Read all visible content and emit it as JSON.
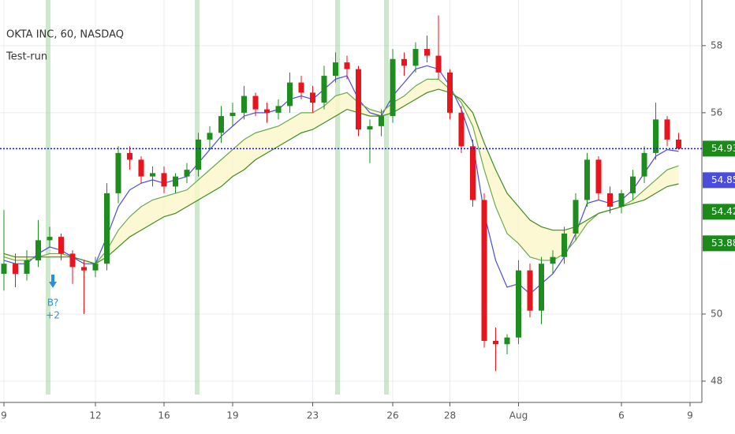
{
  "chart_data": {
    "type": "candlestick",
    "title": "OKTA INC, 60, NASDAQ",
    "subtitle": "Test-run",
    "categories": [
      "9",
      null,
      null,
      null,
      null,
      null,
      null,
      null,
      "12",
      null,
      null,
      null,
      null,
      null,
      "16",
      null,
      null,
      null,
      null,
      null,
      "19",
      null,
      null,
      null,
      null,
      null,
      null,
      "23",
      null,
      null,
      null,
      null,
      null,
      null,
      "26",
      null,
      null,
      null,
      null,
      "28",
      null,
      null,
      null,
      null,
      null,
      "Aug",
      null,
      null,
      null,
      null,
      null,
      null,
      null,
      null,
      "6",
      null,
      null,
      null,
      null,
      null,
      "9"
    ],
    "open": [
      51.2,
      51.5,
      51.2,
      51.6,
      52.2,
      52.3,
      51.8,
      51.4,
      51.3,
      51.5,
      53.6,
      54.8,
      54.6,
      54.1,
      54.2,
      53.8,
      54.1,
      54.3,
      55.2,
      55.4,
      55.9,
      56.0,
      56.5,
      56.1,
      56.0,
      56.2,
      56.9,
      56.6,
      56.3,
      57.1,
      57.5,
      57.3,
      55.5,
      55.6,
      55.9,
      57.6,
      57.4,
      57.9,
      57.7,
      57.2,
      56.0,
      55.0,
      53.4,
      49.2,
      49.1,
      49.3,
      51.3,
      50.1,
      51.5,
      51.7,
      52.4,
      53.4,
      54.6,
      53.6,
      53.2,
      53.6,
      54.1,
      54.8,
      55.8,
      55.2,
      null
    ],
    "high": [
      53.1,
      51.8,
      51.9,
      52.8,
      52.6,
      52.4,
      51.9,
      51.6,
      51.7,
      53.9,
      55.0,
      55.0,
      54.7,
      54.4,
      54.4,
      54.2,
      54.5,
      55.4,
      55.6,
      56.2,
      56.3,
      56.8,
      56.6,
      56.3,
      56.4,
      57.2,
      57.1,
      56.8,
      57.4,
      57.8,
      57.7,
      57.4,
      55.8,
      56.1,
      57.9,
      57.8,
      58.1,
      58.3,
      58.9,
      57.3,
      56.2,
      55.2,
      53.6,
      49.6,
      49.4,
      51.6,
      51.5,
      51.7,
      51.9,
      52.6,
      53.6,
      54.8,
      54.7,
      53.8,
      53.7,
      54.3,
      55.0,
      56.3,
      55.9,
      55.4,
      null
    ],
    "low": [
      50.7,
      50.8,
      51.0,
      51.4,
      52.0,
      51.6,
      50.9,
      50.0,
      51.1,
      51.3,
      53.3,
      54.3,
      53.9,
      53.8,
      53.6,
      53.6,
      53.9,
      54.1,
      54.9,
      55.1,
      55.6,
      55.8,
      55.9,
      55.7,
      55.8,
      56.0,
      56.4,
      56.0,
      56.1,
      56.9,
      57.0,
      55.3,
      54.5,
      55.3,
      55.7,
      57.1,
      57.2,
      57.5,
      57.0,
      55.8,
      54.8,
      53.2,
      49.0,
      48.3,
      48.8,
      49.1,
      49.9,
      49.7,
      51.2,
      51.5,
      52.2,
      53.2,
      53.4,
      53.0,
      53.0,
      53.4,
      53.9,
      54.6,
      55.0,
      54.9,
      null
    ],
    "close": [
      51.5,
      51.2,
      51.6,
      52.2,
      52.3,
      51.8,
      51.4,
      51.3,
      51.5,
      53.6,
      54.8,
      54.6,
      54.1,
      54.2,
      53.8,
      54.1,
      54.3,
      55.2,
      55.4,
      55.9,
      56.0,
      56.5,
      56.1,
      56.0,
      56.2,
      56.9,
      56.6,
      56.3,
      57.1,
      57.5,
      57.3,
      55.5,
      55.6,
      55.9,
      57.6,
      57.4,
      57.9,
      57.7,
      57.2,
      56.0,
      55.0,
      53.4,
      49.2,
      49.1,
      49.3,
      51.3,
      50.1,
      51.5,
      51.7,
      52.4,
      53.4,
      54.6,
      53.6,
      53.2,
      53.6,
      54.1,
      54.8,
      55.8,
      55.2,
      54.93,
      null
    ],
    "up_color": "#1e8c1e",
    "down_color": "#e8141e",
    "last_color": "#1b8a1b",
    "last_line_color": "#1a1ab8",
    "lines": [
      {
        "color": "#4b4bdc",
        "values": [
          51.6,
          51.5,
          51.5,
          51.8,
          52.0,
          51.9,
          51.7,
          51.5,
          51.5,
          52.3,
          53.2,
          53.7,
          53.9,
          54.0,
          53.9,
          54.0,
          54.1,
          54.5,
          54.9,
          55.3,
          55.6,
          55.9,
          56.0,
          56.0,
          56.1,
          56.4,
          56.5,
          56.4,
          56.7,
          57.0,
          57.1,
          56.4,
          56.0,
          55.9,
          56.5,
          56.9,
          57.3,
          57.4,
          57.3,
          56.8,
          56.1,
          55.1,
          53.0,
          51.6,
          50.8,
          50.9,
          50.6,
          50.9,
          51.2,
          51.7,
          52.4,
          53.3,
          53.4,
          53.3,
          53.4,
          53.7,
          54.2,
          54.7,
          54.9,
          54.85,
          null
        ]
      },
      {
        "color": "#6aa84f",
        "values": [
          51.7,
          51.6,
          51.6,
          51.7,
          51.8,
          51.8,
          51.7,
          51.6,
          51.5,
          51.9,
          52.5,
          52.9,
          53.2,
          53.4,
          53.5,
          53.6,
          53.7,
          54.0,
          54.3,
          54.6,
          54.9,
          55.2,
          55.4,
          55.5,
          55.6,
          55.8,
          56.0,
          56.0,
          56.2,
          56.5,
          56.6,
          56.3,
          56.1,
          56.0,
          56.3,
          56.5,
          56.8,
          57.0,
          57.0,
          56.7,
          56.3,
          55.6,
          54.3,
          53.2,
          52.4,
          52.1,
          51.7,
          51.6,
          51.6,
          51.8,
          52.2,
          52.7,
          53.0,
          53.1,
          53.2,
          53.4,
          53.7,
          54.0,
          54.3,
          54.42,
          null
        ]
      },
      {
        "color": "#3d8c1f",
        "values": [
          51.8,
          51.7,
          51.7,
          51.7,
          51.7,
          51.7,
          51.7,
          51.6,
          51.5,
          51.7,
          52.0,
          52.3,
          52.5,
          52.7,
          52.9,
          53.0,
          53.2,
          53.4,
          53.6,
          53.8,
          54.1,
          54.3,
          54.6,
          54.8,
          55.0,
          55.2,
          55.4,
          55.5,
          55.7,
          55.9,
          56.1,
          56.0,
          55.9,
          55.9,
          56.0,
          56.2,
          56.4,
          56.6,
          56.7,
          56.6,
          56.4,
          56.0,
          55.1,
          54.3,
          53.6,
          53.2,
          52.8,
          52.6,
          52.5,
          52.5,
          52.6,
          52.8,
          53.0,
          53.1,
          53.2,
          53.3,
          53.4,
          53.6,
          53.8,
          53.88,
          null
        ]
      }
    ],
    "band_color": "#fbf6c8",
    "annotations": [
      {
        "text": "B?"
      },
      {
        "text": "+2"
      }
    ],
    "ylim": [
      47.6,
      59.36
    ],
    "yticks": [
      48,
      50,
      56,
      58
    ],
    "grid": true
  }
}
